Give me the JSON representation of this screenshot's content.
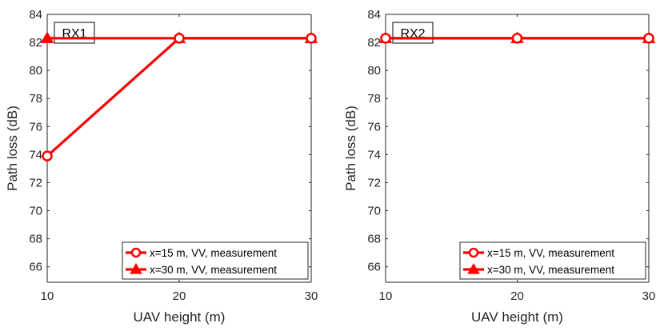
{
  "chart_data": [
    {
      "type": "line",
      "panel_label": "RX1",
      "xlabel": "UAV height (m)",
      "ylabel": "Path loss (dB)",
      "xlim": [
        10,
        30
      ],
      "ylim": [
        64.9,
        84
      ],
      "xticks": [
        10,
        20,
        30
      ],
      "yticks": [
        66,
        68,
        70,
        72,
        74,
        76,
        78,
        80,
        82,
        84
      ],
      "grid": false,
      "legend_position": "bottom-right",
      "series": [
        {
          "name": "x=15 m, VV, measurement",
          "marker": "circle",
          "color": "#ff0000",
          "x": [
            10,
            20,
            30
          ],
          "y": [
            73.9,
            82.3,
            82.3
          ]
        },
        {
          "name": "x=30 m, VV, measurement",
          "marker": "triangle",
          "color": "#ff0000",
          "x": [
            10,
            20,
            30
          ],
          "y": [
            82.3,
            82.3,
            82.3
          ]
        }
      ]
    },
    {
      "type": "line",
      "panel_label": "RX2",
      "xlabel": "UAV height (m)",
      "ylabel": "Path loss (dB)",
      "xlim": [
        10,
        30
      ],
      "ylim": [
        64.9,
        84
      ],
      "xticks": [
        10,
        20,
        30
      ],
      "yticks": [
        66,
        68,
        70,
        72,
        74,
        76,
        78,
        80,
        82,
        84
      ],
      "grid": false,
      "legend_position": "bottom-right",
      "series": [
        {
          "name": "x=15 m, VV, measurement",
          "marker": "circle",
          "color": "#ff0000",
          "x": [
            10,
            20,
            30
          ],
          "y": [
            82.3,
            82.3,
            82.3
          ]
        },
        {
          "name": "x=30 m, VV, measurement",
          "marker": "triangle",
          "color": "#ff0000",
          "x": [
            10,
            20,
            30
          ],
          "y": [
            82.3,
            82.3,
            82.3
          ]
        }
      ]
    }
  ]
}
